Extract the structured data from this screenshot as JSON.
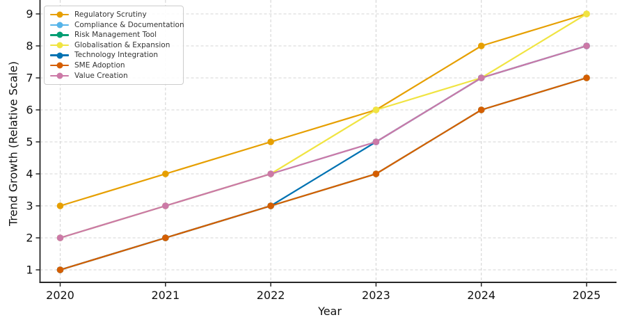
{
  "chart_data": {
    "type": "line",
    "x": [
      2020,
      2021,
      2022,
      2023,
      2024,
      2025
    ],
    "xlabel": "Year",
    "ylabel": "Trend Growth (Relative Scale)",
    "yticks": [
      1,
      2,
      3,
      4,
      5,
      6,
      7,
      8,
      9
    ],
    "ylim": [
      0.6,
      9.45
    ],
    "xlim": [
      2019.8,
      2025.28
    ],
    "grid": true,
    "grid_style": "dashed",
    "legend_position": "upper left",
    "series": [
      {
        "name": "Regulatory Scrutiny",
        "color": "#E69F00",
        "values": [
          3,
          4,
          5,
          6,
          8,
          9
        ]
      },
      {
        "name": "Compliance & Documentation",
        "color": "#56B4E9",
        "values": [
          2,
          3,
          4,
          5,
          7,
          8
        ]
      },
      {
        "name": "Risk Management Tool",
        "color": "#009E73",
        "values": [
          1,
          2,
          3,
          4,
          6,
          7
        ]
      },
      {
        "name": "Globalisation & Expansion",
        "color": "#F0E442",
        "values": [
          2,
          3,
          4,
          6,
          7,
          9
        ]
      },
      {
        "name": "Technology Integration",
        "color": "#0072B2",
        "values": [
          1,
          2,
          3,
          5,
          7,
          8
        ]
      },
      {
        "name": "SME Adoption",
        "color": "#D55E00",
        "values": [
          1,
          2,
          3,
          4,
          6,
          7
        ]
      },
      {
        "name": "Value Creation",
        "color": "#CC79A7",
        "values": [
          2,
          3,
          4,
          5,
          7,
          8
        ]
      }
    ],
    "colors": {
      "grid": "#d5d5d5",
      "spine": "#262626",
      "tick_label": "#111111"
    }
  }
}
